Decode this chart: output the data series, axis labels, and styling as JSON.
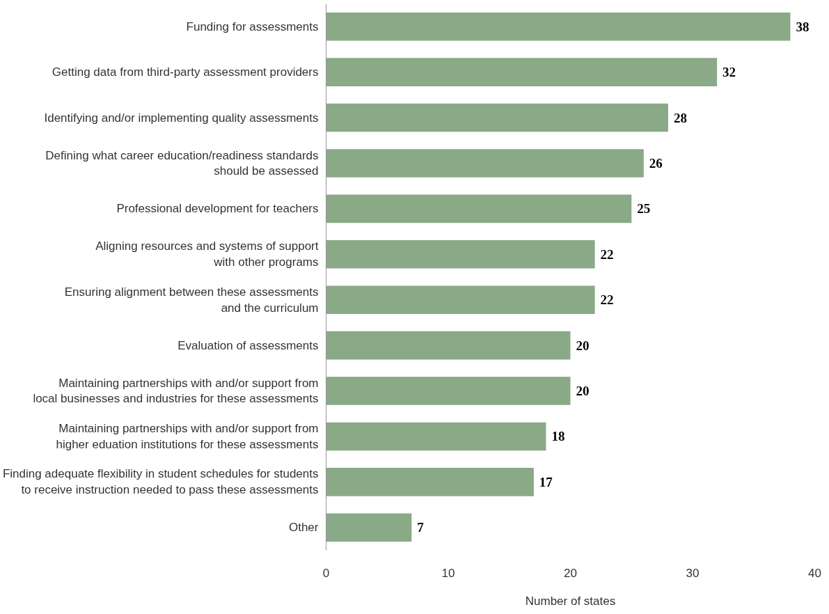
{
  "chart_data": {
    "type": "bar",
    "orientation": "horizontal",
    "xlabel": "Number of states",
    "categories": [
      "Funding for assessments",
      "Getting data from third-party assessment providers",
      "Identifying and/or implementing quality assessments",
      "Defining what career education/readiness standards\nshould be assessed",
      "Professional development for teachers",
      "Aligning resources and systems of support\nwith other programs",
      "Ensuring alignment between these assessments\nand the curriculum",
      "Evaluation of assessments",
      "Maintaining partnerships with and/or support from\nlocal businesses and industries for these assessments",
      "Maintaining partnerships with and/or support from\nhigher eduation institutions for these assessments",
      "Finding adequate flexibility in student schedules for students\nto receive instruction needed to pass these assessments",
      "Other"
    ],
    "values": [
      38,
      32,
      28,
      26,
      25,
      22,
      22,
      20,
      20,
      18,
      17,
      7
    ],
    "color": "#8aa987",
    "xlim": [
      0,
      40
    ],
    "xticks": [
      0,
      10,
      20,
      30,
      40
    ],
    "data_labels": true,
    "grid": false
  }
}
